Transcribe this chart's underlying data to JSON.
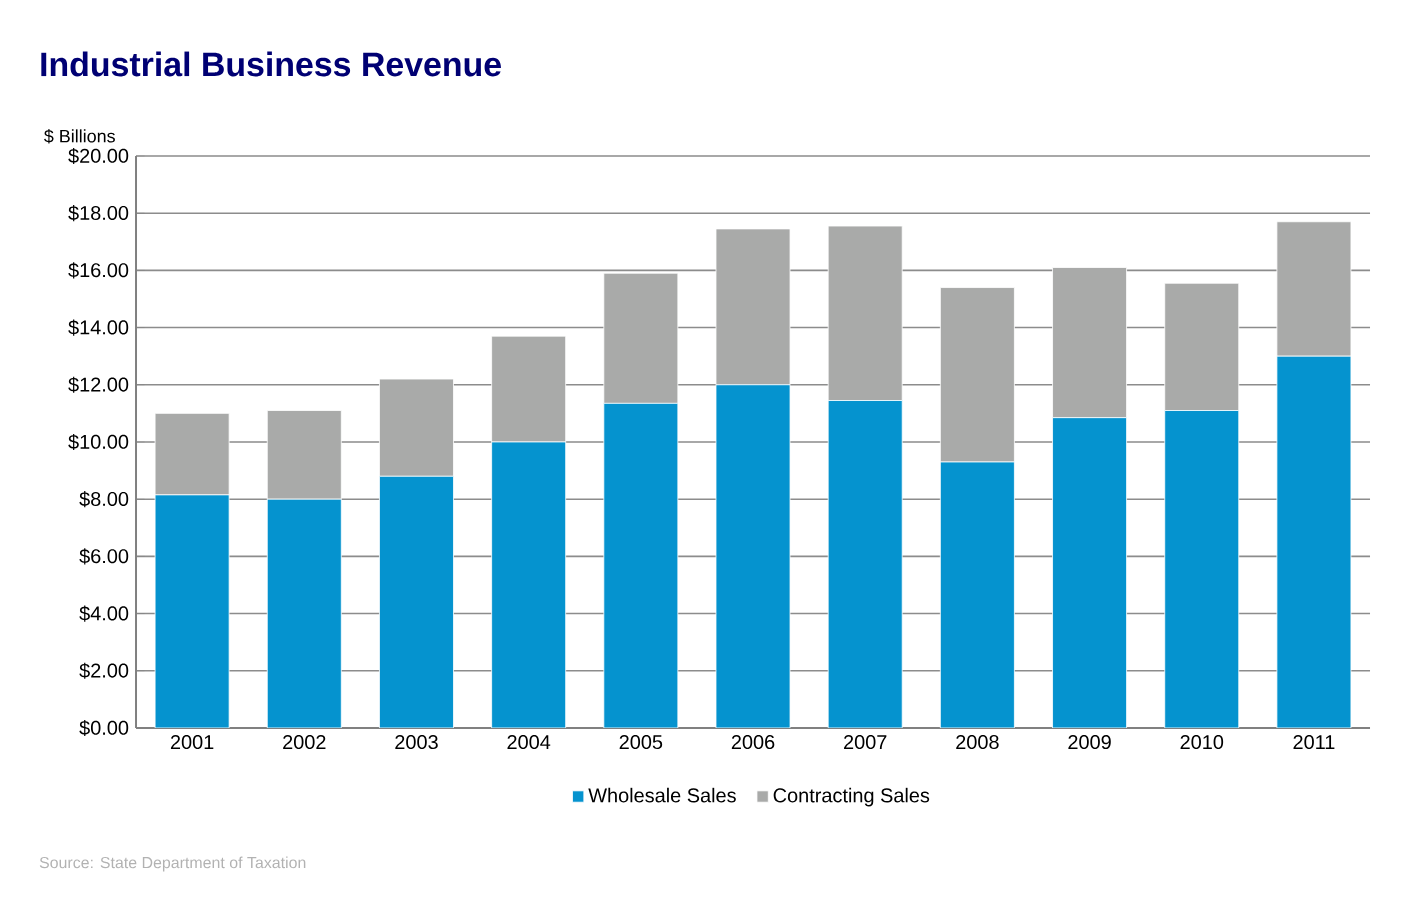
{
  "chart_data": {
    "type": "bar",
    "title": "Industrial Business Revenue",
    "ylabel": "$ Billions",
    "categories": [
      "2001",
      "2002",
      "2003",
      "2004",
      "2005",
      "2006",
      "2007",
      "2008",
      "2009",
      "2010",
      "2011"
    ],
    "series": [
      {
        "name": "Wholesale Sales",
        "color": "#0593cf",
        "values": [
          8.15,
          8.0,
          8.8,
          10.0,
          11.35,
          12.0,
          11.45,
          9.3,
          10.85,
          11.1,
          13.0
        ]
      },
      {
        "name": "Contracting Sales",
        "color": "#a9aaa9",
        "values": [
          2.85,
          3.1,
          3.4,
          3.7,
          4.55,
          5.45,
          6.1,
          6.1,
          5.25,
          4.45,
          4.7
        ]
      }
    ],
    "stacked": true,
    "ylim": [
      0,
      20
    ],
    "yticks": [
      {
        "value": 0,
        "label": "$0.00"
      },
      {
        "value": 2,
        "label": "$2.00"
      },
      {
        "value": 4,
        "label": "$4.00"
      },
      {
        "value": 6,
        "label": "$6.00"
      },
      {
        "value": 8,
        "label": "$8.00"
      },
      {
        "value": 10,
        "label": "$10.00"
      },
      {
        "value": 12,
        "label": "$12.00"
      },
      {
        "value": 14,
        "label": "$14.00"
      },
      {
        "value": 16,
        "label": "$16.00"
      },
      {
        "value": 18,
        "label": "$18.00"
      },
      {
        "value": 20,
        "label": "$20.00"
      }
    ],
    "grid": "y",
    "legend": "bottom",
    "annotations": [
      "Source: State Department of Taxation"
    ]
  }
}
